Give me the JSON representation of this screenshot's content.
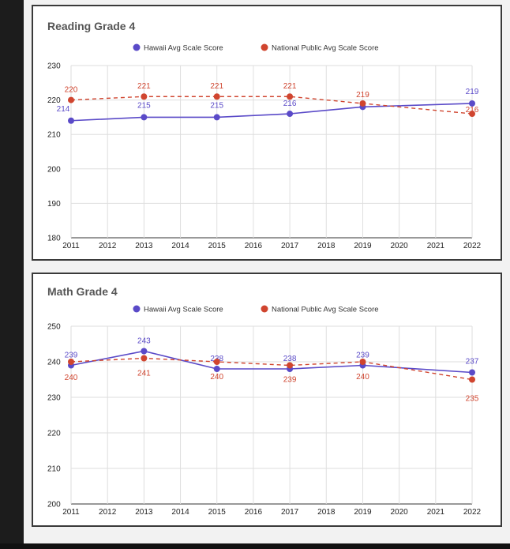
{
  "colors": {
    "hawaii": "#5a4ac8",
    "national": "#d0452f"
  },
  "chart_data": [
    {
      "type": "line",
      "title": "Reading Grade 4",
      "x_ticks": [
        "2011",
        "2012",
        "2013",
        "2014",
        "2015",
        "2016",
        "2017",
        "2018",
        "2019",
        "2020",
        "2021",
        "2022"
      ],
      "ylim": [
        180,
        230
      ],
      "y_ticks": [
        180,
        190,
        200,
        210,
        220,
        230
      ],
      "grid": true,
      "legend": "top-center",
      "series": [
        {
          "name": "Hawaii Avg Scale Score",
          "style": "solid",
          "x": [
            2011,
            2013,
            2015,
            2017,
            2019,
            2022
          ],
          "values": [
            214,
            215,
            215,
            216,
            218,
            219
          ],
          "labels": [
            "214",
            "215",
            "215",
            "216",
            "",
            "219"
          ]
        },
        {
          "name": "National Public Avg Scale Score",
          "style": "dashed",
          "x": [
            2011,
            2013,
            2015,
            2017,
            2019,
            2022
          ],
          "values": [
            220,
            221,
            221,
            221,
            219,
            216
          ],
          "labels": [
            "220",
            "221",
            "221",
            "221",
            "219",
            "216"
          ]
        }
      ]
    },
    {
      "type": "line",
      "title": "Math Grade 4",
      "x_ticks": [
        "2011",
        "2012",
        "2013",
        "2014",
        "2015",
        "2016",
        "2017",
        "2018",
        "2019",
        "2020",
        "2021",
        "2022"
      ],
      "ylim": [
        200,
        250
      ],
      "y_ticks": [
        200,
        210,
        220,
        230,
        240,
        250
      ],
      "grid": true,
      "legend": "top-center",
      "series": [
        {
          "name": "Hawaii Avg Scale Score",
          "style": "solid",
          "x": [
            2011,
            2013,
            2015,
            2017,
            2019,
            2022
          ],
          "values": [
            239,
            243,
            238,
            238,
            239,
            237
          ],
          "labels": [
            "239",
            "243",
            "238",
            "238",
            "239",
            "237"
          ]
        },
        {
          "name": "National Public Avg Scale Score",
          "style": "dashed",
          "x": [
            2011,
            2013,
            2015,
            2017,
            2019,
            2022
          ],
          "values": [
            240,
            241,
            240,
            239,
            240,
            235
          ],
          "labels": [
            "240",
            "241",
            "240",
            "239",
            "240",
            "235"
          ]
        }
      ]
    }
  ]
}
